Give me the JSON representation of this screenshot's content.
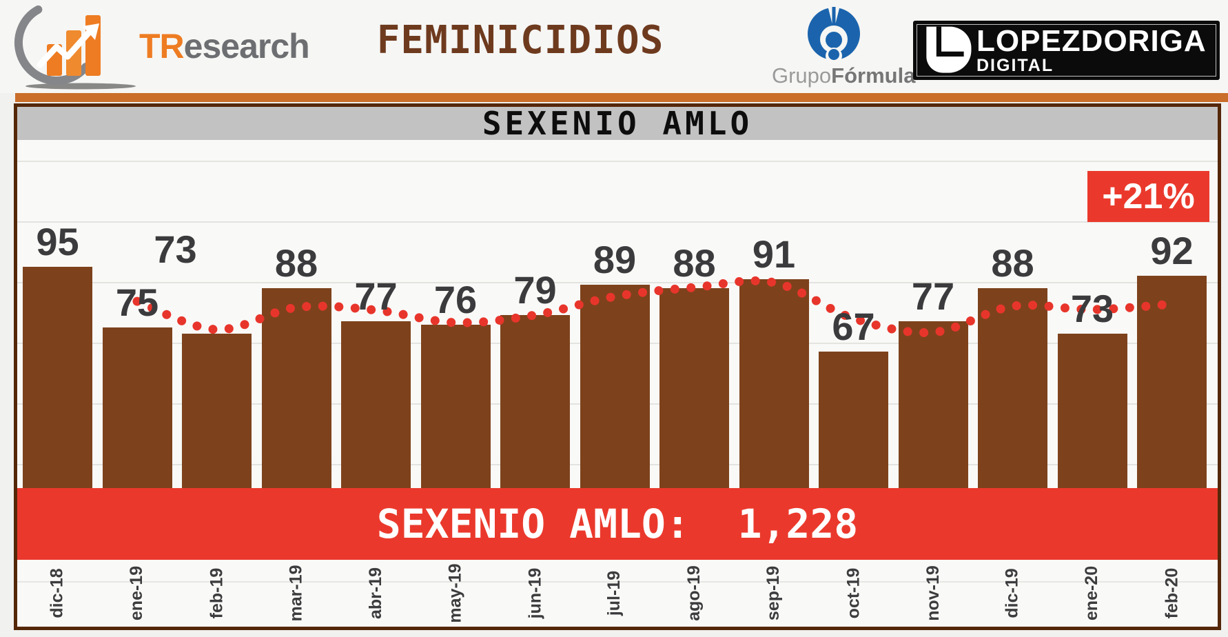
{
  "header": {
    "title": "FEMINICIDIOS",
    "tresearch": {
      "tr": "TR",
      "rest": "esearch"
    },
    "grupo_formula": {
      "grupo": "Grupo",
      "formula": "Fórmula",
      "mark": "®"
    },
    "lopezdoriga": {
      "line1": "LOPEZDORIGA",
      "line2": "DIGITAL"
    }
  },
  "chart_data": {
    "type": "bar",
    "title": "SEXENIO AMLO",
    "categories": [
      "dic-18",
      "ene-19",
      "feb-19",
      "mar-19",
      "abr-19",
      "may-19",
      "jun-19",
      "jul-19",
      "ago-19",
      "sep-19",
      "oct-19",
      "nov-19",
      "dic-19",
      "ene-20",
      "feb-20"
    ],
    "series": [
      {
        "name": "feminicidios-mensuales",
        "type": "bar",
        "values": [
          95,
          75,
          73,
          88,
          77,
          76,
          79,
          89,
          88,
          91,
          67,
          77,
          88,
          73,
          92
        ]
      },
      {
        "name": "tendencia-punteada",
        "type": "dotted-line",
        "estimated": true,
        "values": [
          null,
          83.6,
          74.3,
          81.6,
          80.7,
          76.6,
          79.1,
          85.2,
          88.2,
          89.8,
          78.0,
          73.4,
          82.0,
          80.9,
          82.7
        ]
      }
    ],
    "annotations": {
      "change_badge": "+21%",
      "total_banner": "SEXENIO AMLO:  1,228",
      "total": 1228
    },
    "ylim": [
      0,
      140
    ],
    "gridline_step": 20,
    "legend": "none",
    "x_labels_rotated": true
  },
  "colors": {
    "bar_brown": "#7d421c",
    "red_accent": "#ea392c",
    "dot_red": "#e8352b",
    "panel_border": "#542709",
    "orange_divider": "#ca6e2b",
    "title_brown": "#6e3a1e",
    "band_gray": "#c3c2c2",
    "label_dark": "#3b3b3d",
    "formula_blue": "#1b64ad",
    "logo_orange": "#ee7c22",
    "logo_gray": "#6d6e71"
  }
}
